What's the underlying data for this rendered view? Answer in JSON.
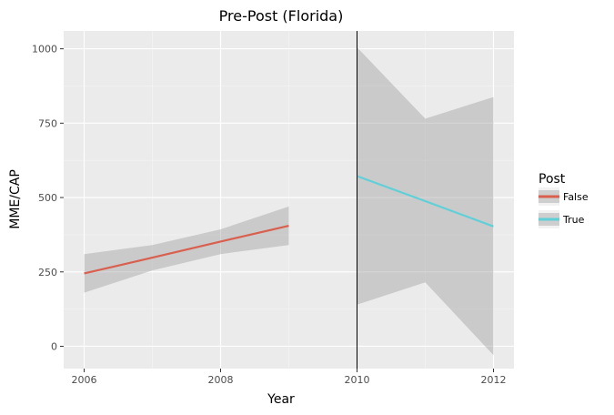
{
  "chart_data": {
    "type": "line",
    "title": "Pre-Post (Florida)",
    "xlabel": "Year",
    "ylabel": "MME/CAP",
    "xlim": [
      2005.7,
      2012.3
    ],
    "ylim": [
      -75,
      1060
    ],
    "x_ticks": [
      2006,
      2008,
      2010,
      2012
    ],
    "y_ticks": [
      0,
      250,
      500,
      750,
      1000
    ],
    "grid": true,
    "vline": 2010,
    "legend": {
      "title": "Post",
      "placement": "right"
    },
    "series": [
      {
        "name": "False",
        "color": "#d9604f",
        "x": [
          2006,
          2007,
          2008,
          2009
        ],
        "y": [
          245,
          298,
          352,
          405
        ],
        "ci_lower": [
          180,
          255,
          310,
          340
        ],
        "ci_upper": [
          310,
          340,
          393,
          470
        ]
      },
      {
        "name": "True",
        "color": "#5fd0d8",
        "x": [
          2010,
          2011,
          2012
        ],
        "y": [
          572,
          488,
          403
        ],
        "ci_lower": [
          140,
          215,
          -30
        ],
        "ci_upper": [
          1005,
          765,
          838
        ]
      }
    ]
  }
}
